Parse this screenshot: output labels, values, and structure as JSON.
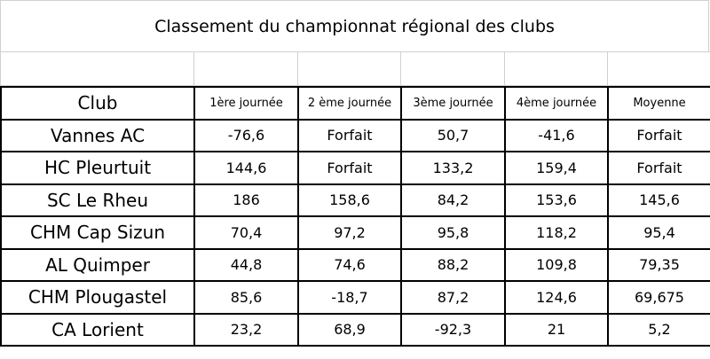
{
  "title": "Classement du championnat régional des clubs",
  "table": {
    "header": [
      "Club",
      "1ère journée",
      "2 ème journée",
      "3ème journée",
      "4ème journée",
      "Moyenne"
    ],
    "rows": [
      [
        "Vannes AC",
        "-76,6",
        "Forfait",
        "50,7",
        "-41,6",
        "Forfait"
      ],
      [
        "HC Pleurtuit",
        "144,6",
        "Forfait",
        "133,2",
        "159,4",
        "Forfait"
      ],
      [
        "SC Le Rheu",
        "186",
        "158,6",
        "84,2",
        "153,6",
        "145,6"
      ],
      [
        "CHM Cap Sizun",
        "70,4",
        "97,2",
        "95,8",
        "118,2",
        "95,4"
      ],
      [
        "AL Quimper",
        "44,8",
        "74,6",
        "88,2",
        "109,8",
        "79,35"
      ],
      [
        "CHM Plougastel",
        "85,6",
        "-18,7",
        "87,2",
        "124,6",
        "69,675"
      ],
      [
        "CA Lorient",
        "23,2",
        "68,9",
        "-92,3",
        "21",
        "5,2"
      ]
    ]
  }
}
